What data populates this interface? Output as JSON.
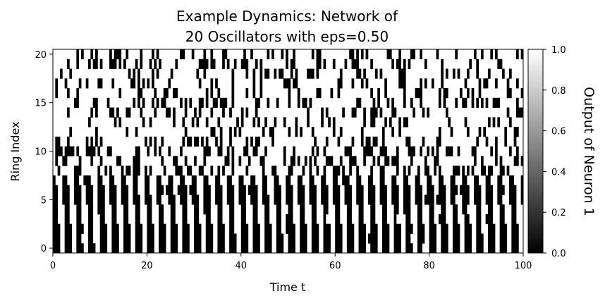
{
  "chart_data": {
    "type": "heatmap",
    "title_line1": "Example Dynamics: Network of",
    "title_line2": "20 Oscillators with eps=0.50",
    "xlabel": "Time t",
    "ylabel": "Ring Index",
    "xlim": [
      0,
      100
    ],
    "ylim": [
      -0.5,
      20.5
    ],
    "x_ticks": [
      0,
      20,
      40,
      60,
      80,
      100
    ],
    "y_ticks": [
      0,
      5,
      10,
      15,
      20
    ],
    "colormap": "gray",
    "colorbar": {
      "label": "Output of Neuron 1",
      "range": [
        0.0,
        1.0
      ],
      "ticks": [
        "0.0",
        "0.2",
        "0.4",
        "0.6",
        "0.8",
        "1.0"
      ]
    },
    "rows": 21,
    "time_samples": 200,
    "description_values": "binary (0 or 1) neuron outputs; lower ring indices (0-7) show regular synchronized oscillation with period about 2.5, upper indices (8-20) show irregular switching"
  },
  "colors": {
    "high": "#ffffff",
    "low": "#000000",
    "frame": "#000000"
  }
}
